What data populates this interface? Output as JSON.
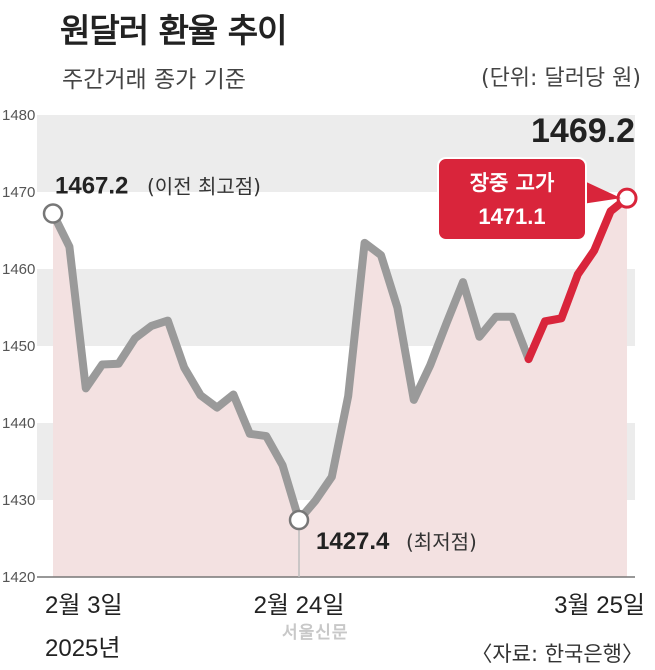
{
  "header": {
    "title": "원달러 환율 추이",
    "subtitle": "주간거래 종가 기준",
    "unit": "(단위: 달러당 원)"
  },
  "source": "〈자료: 한국은행〉",
  "watermark": "서울신문",
  "chart_data": {
    "type": "line",
    "ylim": [
      1420,
      1480
    ],
    "yticks": [
      1420,
      1430,
      1440,
      1450,
      1460,
      1470,
      1480
    ],
    "x_tick_labels": [
      {
        "index": 0,
        "label": "2월 3일"
      },
      {
        "index": 15,
        "label": "2월 24일"
      },
      {
        "index": 35,
        "label": "3월 25일"
      }
    ],
    "x_year_label": "2025년",
    "values": [
      1467.2,
      1462.9,
      1444.5,
      1447.6,
      1447.7,
      1451.0,
      1452.6,
      1453.3,
      1447.2,
      1443.6,
      1442.0,
      1443.7,
      1438.6,
      1438.3,
      1434.5,
      1427.4,
      1429.9,
      1433.0,
      1443.5,
      1463.4,
      1461.8,
      1455.0,
      1443.0,
      1447.5,
      1453.0,
      1458.3,
      1451.2,
      1453.8,
      1453.8,
      1448.3,
      1453.2,
      1453.6,
      1459.3,
      1462.4,
      1467.5,
      1469.2
    ],
    "highlight_from_index": 29,
    "colors": {
      "main_line": "#9a9a9a",
      "highlight_line": "#d9253b",
      "fill": "#f3e1e1",
      "grid_band": "#ececec"
    },
    "annotations": [
      {
        "index": 0,
        "value_label": "1467.2",
        "text": "(이전 최고점)"
      },
      {
        "index": 15,
        "value_label": "1427.4",
        "text": "(최저점)"
      }
    ],
    "last_value_label": "1469.2",
    "badge": {
      "label": "장중 고가",
      "value": "1471.1"
    }
  }
}
